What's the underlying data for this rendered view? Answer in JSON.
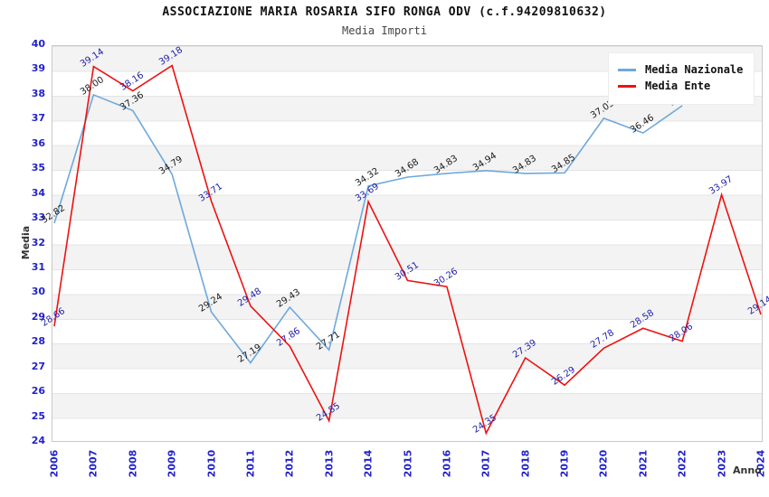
{
  "header": {
    "title": "ASSOCIAZIONE MARIA ROSARIA SIFO RONGA ODV (c.f.94209810632)",
    "subtitle": "Media Importi"
  },
  "chart_data": {
    "type": "line",
    "title": "ASSOCIAZIONE MARIA ROSARIA SIFO RONGA ODV (c.f.94209810632)",
    "subtitle": "Media Importi",
    "xlabel": "Anno",
    "ylabel": "Media",
    "ylim": [
      24,
      40
    ],
    "ytick_step": 1,
    "grid": "horizontal-bands",
    "legend_position": "top-right",
    "categories": [
      "2006",
      "2007",
      "2008",
      "2009",
      "2010",
      "2011",
      "2012",
      "2013",
      "2014",
      "2015",
      "2016",
      "2017",
      "2018",
      "2019",
      "2020",
      "2021",
      "2022",
      "2023",
      "2024"
    ],
    "series": [
      {
        "name": "Media Nazionale",
        "color": "#6fa8dc",
        "label_color": "#1a1a1a",
        "values": [
          32.82,
          38.0,
          37.36,
          34.79,
          29.24,
          27.19,
          29.43,
          27.71,
          34.32,
          34.68,
          34.83,
          34.94,
          34.83,
          34.85,
          37.05,
          36.46,
          37.56,
          null,
          null
        ]
      },
      {
        "name": "Media Ente",
        "color": "#ee1111",
        "label_color": "#2222aa",
        "values": [
          28.66,
          39.14,
          38.16,
          39.18,
          33.71,
          29.48,
          27.86,
          24.85,
          33.69,
          30.51,
          30.26,
          24.35,
          27.39,
          26.29,
          27.78,
          28.58,
          28.06,
          33.97,
          29.14
        ]
      }
    ]
  },
  "colors": {
    "tick_label": "#2222cc",
    "axis_label": "#333333",
    "band_gray": "#f3f3f3"
  }
}
